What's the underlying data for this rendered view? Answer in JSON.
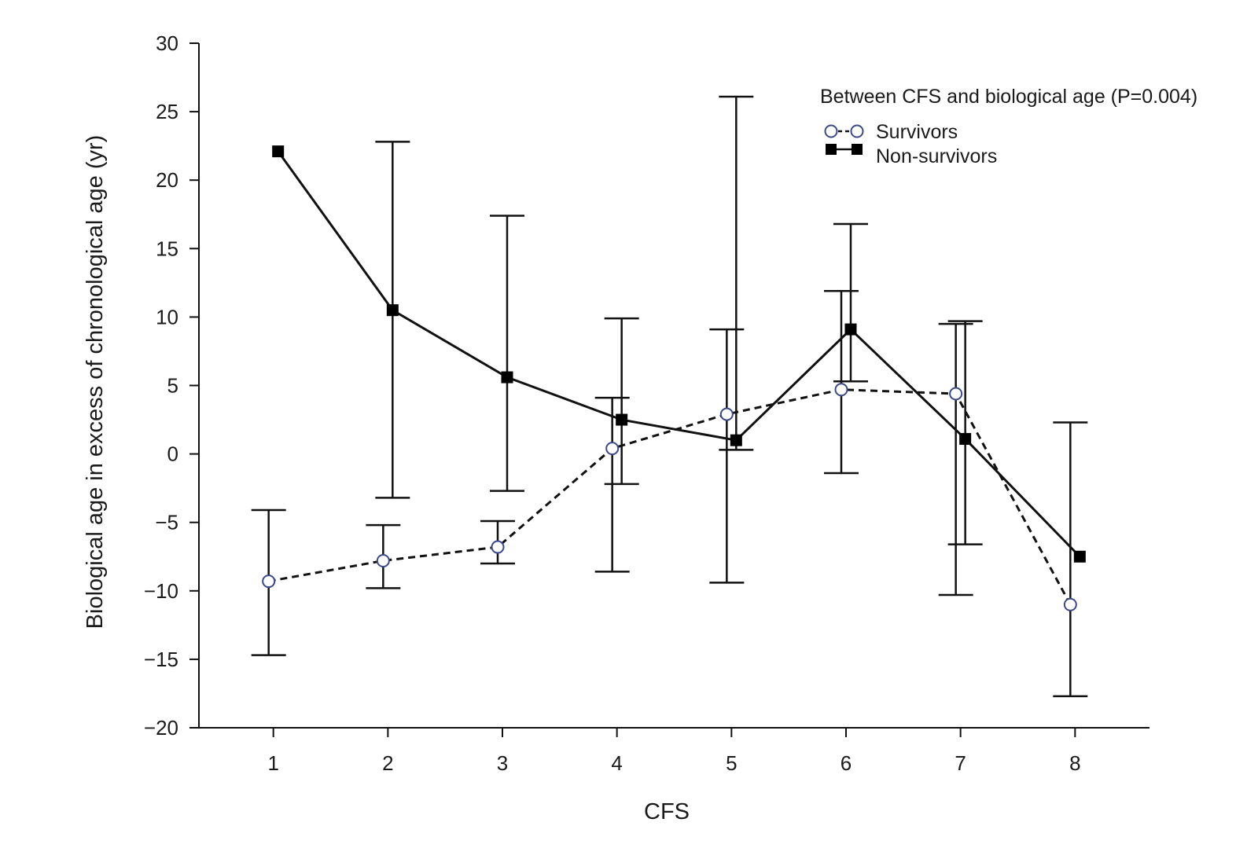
{
  "chart_data": {
    "type": "line",
    "xlabel": "CFS",
    "ylabel": "Biological age in excess of chronological age (yr)",
    "x": [
      1,
      2,
      3,
      4,
      5,
      6,
      7,
      8
    ],
    "xlim": [
      0.35,
      8.65
    ],
    "ylim": [
      -20,
      30
    ],
    "yticks": [
      30,
      25,
      20,
      15,
      10,
      5,
      0,
      -5,
      -10,
      -15,
      -20
    ],
    "ytick_labels": [
      "30",
      "25",
      "20",
      "15",
      "10",
      "5",
      "0",
      "−5",
      "−10",
      "−15",
      "−20"
    ],
    "xticks": [
      1,
      2,
      3,
      4,
      5,
      6,
      7,
      8
    ],
    "xtick_labels": [
      "1",
      "2",
      "3",
      "4",
      "5",
      "6",
      "7",
      "8"
    ],
    "annotation": "Between CFS and biological age (P=0.004)",
    "legend_position": "top-right",
    "grid": false,
    "series": [
      {
        "name": "Survivors",
        "marker": "open-circle",
        "line": "dashed",
        "values": [
          -9.3,
          -7.8,
          -6.8,
          0.4,
          2.9,
          4.7,
          4.4,
          -11.0
        ],
        "err_low": [
          -14.7,
          -9.8,
          -8.0,
          -8.6,
          -9.4,
          -1.4,
          -10.3,
          -17.7
        ],
        "err_high": [
          -4.1,
          -5.2,
          -4.9,
          4.1,
          9.1,
          11.9,
          9.5,
          2.3
        ]
      },
      {
        "name": "Non-survivors",
        "marker": "filled-square",
        "line": "solid",
        "values": [
          22.1,
          10.5,
          5.6,
          2.5,
          1.0,
          9.1,
          1.1,
          -7.5
        ],
        "err_low": [
          null,
          -3.2,
          -2.7,
          -2.2,
          0.3,
          5.3,
          -6.6,
          null
        ],
        "err_high": [
          null,
          22.8,
          17.4,
          9.9,
          26.1,
          16.8,
          9.7,
          null
        ]
      }
    ],
    "colors": {
      "line": "#111111",
      "open_marker_stroke": "#3a4a8a",
      "open_marker_fill": "#ffffff",
      "filled_marker": "#000000"
    }
  }
}
